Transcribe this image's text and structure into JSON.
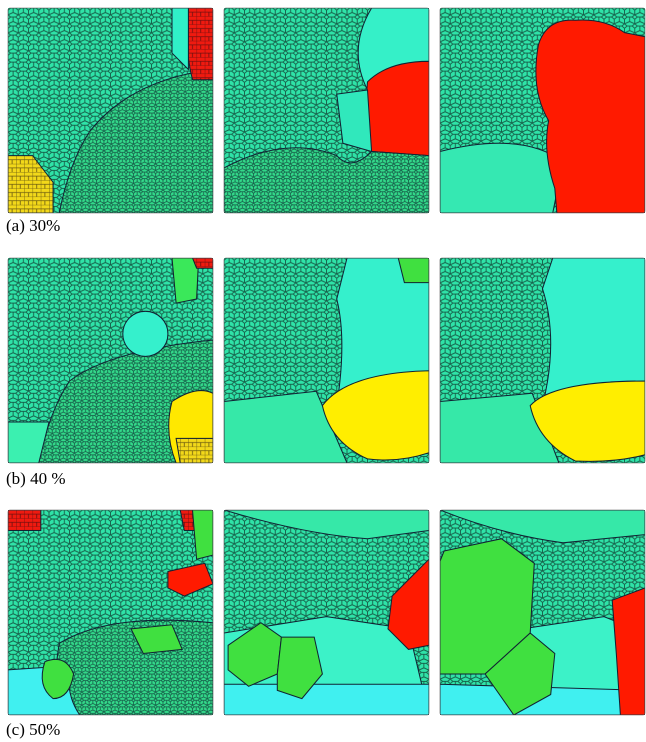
{
  "figure": {
    "captions": [
      "(a) 30%",
      "(b) 40 %",
      "(c) 50%"
    ]
  }
}
